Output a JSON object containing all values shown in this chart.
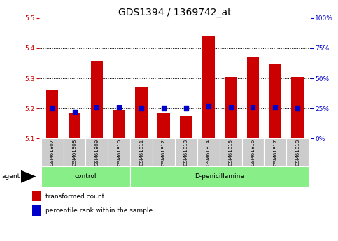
{
  "title": "GDS1394 / 1369742_at",
  "samples": [
    "GSM61807",
    "GSM61808",
    "GSM61809",
    "GSM61810",
    "GSM61811",
    "GSM61812",
    "GSM61813",
    "GSM61814",
    "GSM61815",
    "GSM61816",
    "GSM61817",
    "GSM61818"
  ],
  "transformed_count": [
    5.26,
    5.185,
    5.355,
    5.197,
    5.27,
    5.185,
    5.175,
    5.44,
    5.305,
    5.37,
    5.35,
    5.305
  ],
  "percentile_rank": [
    25,
    22,
    26,
    26,
    25,
    25,
    25,
    27,
    26,
    26,
    26,
    25
  ],
  "bar_bottom": 5.1,
  "ylim_left": [
    5.1,
    5.5
  ],
  "ylim_right": [
    0,
    100
  ],
  "yticks_left": [
    5.1,
    5.2,
    5.3,
    5.4,
    5.5
  ],
  "yticks_right": [
    0,
    25,
    50,
    75,
    100
  ],
  "bar_color": "#cc0000",
  "dot_color": "#0000cc",
  "control_group": [
    0,
    1,
    2,
    3
  ],
  "treatment_group": [
    4,
    5,
    6,
    7,
    8,
    9,
    10,
    11
  ],
  "control_label": "control",
  "treatment_label": "D-penicillamine",
  "agent_label": "agent",
  "legend_bar_label": "transformed count",
  "legend_dot_label": "percentile rank within the sample",
  "group_box_color": "#88ee88",
  "tick_box_color": "#cccccc",
  "dotted_line_color": "#000000",
  "background_color": "#ffffff",
  "right_axis_color": "#0000cc",
  "left_axis_color": "#cc0000",
  "title_fontsize": 10,
  "tick_fontsize": 6.5,
  "label_fontsize": 7
}
